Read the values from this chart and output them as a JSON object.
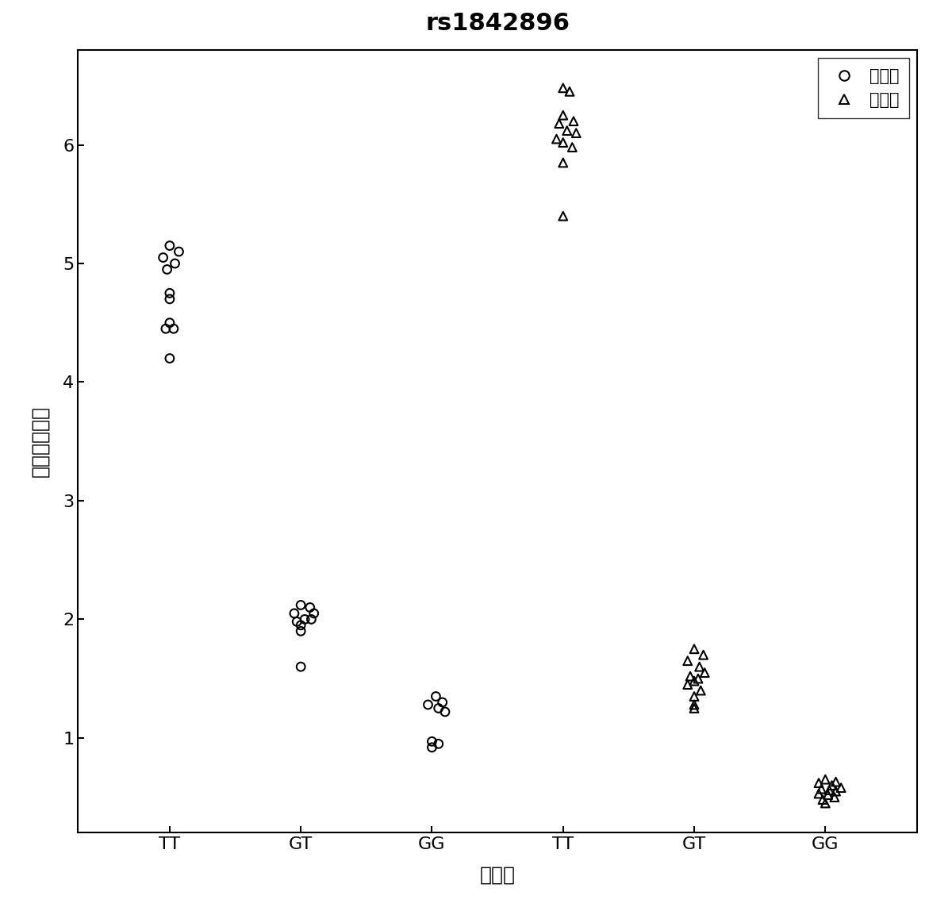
{
  "title": "rs1842896",
  "xlabel": "基因型",
  "ylabel": "探针信号比値",
  "legend_labels": [
    "优化前",
    "优化后"
  ],
  "xtick_labels": [
    "TT",
    "GT",
    "GG",
    "TT",
    "GT",
    "GG"
  ],
  "xtick_positions": [
    1,
    2,
    3,
    4,
    5,
    6
  ],
  "yticks": [
    1,
    2,
    3,
    4,
    5,
    6
  ],
  "ylim": [
    0.2,
    6.8
  ],
  "xlim": [
    0.3,
    6.7
  ],
  "circle_TT_y": [
    5.15,
    5.1,
    5.05,
    5.0,
    4.95,
    4.75,
    4.7,
    4.5,
    4.45,
    4.45,
    4.2
  ],
  "circle_TT_x": [
    1.0,
    1.07,
    0.95,
    1.04,
    0.98,
    1.0,
    1.0,
    1.0,
    0.97,
    1.03,
    1.0
  ],
  "circle_GT_y": [
    2.12,
    2.1,
    2.05,
    2.05,
    2.0,
    2.0,
    1.98,
    1.95,
    1.9,
    1.6
  ],
  "circle_GT_x": [
    2.0,
    2.07,
    1.95,
    2.1,
    2.03,
    2.08,
    1.97,
    2.0,
    2.0,
    2.0
  ],
  "circle_GG_y": [
    1.35,
    1.3,
    1.28,
    1.25,
    1.22,
    0.97,
    0.95,
    0.92
  ],
  "circle_GG_x": [
    3.03,
    3.08,
    2.97,
    3.05,
    3.1,
    3.0,
    3.05,
    3.0
  ],
  "tri_TT_y": [
    6.48,
    6.45,
    6.25,
    6.2,
    6.18,
    6.12,
    6.1,
    6.05,
    6.02,
    5.98,
    5.85,
    5.4
  ],
  "tri_TT_x": [
    4.0,
    4.05,
    4.0,
    4.08,
    3.97,
    4.03,
    4.1,
    3.95,
    4.0,
    4.07,
    4.0,
    4.0
  ],
  "tri_GT_y": [
    1.75,
    1.7,
    1.65,
    1.6,
    1.55,
    1.52,
    1.5,
    1.48,
    1.45,
    1.4,
    1.35,
    1.28,
    1.25
  ],
  "tri_GT_x": [
    5.0,
    5.07,
    4.95,
    5.04,
    5.08,
    4.97,
    5.03,
    5.0,
    4.95,
    5.05,
    5.0,
    5.0,
    5.0
  ],
  "tri_GG_y": [
    0.65,
    0.63,
    0.62,
    0.6,
    0.58,
    0.57,
    0.56,
    0.55,
    0.53,
    0.52,
    0.5,
    0.48,
    0.45
  ],
  "tri_GG_x": [
    6.0,
    6.08,
    5.95,
    6.05,
    6.12,
    5.97,
    6.03,
    6.08,
    5.95,
    6.02,
    6.07,
    5.98,
    6.0
  ],
  "marker_size": 60,
  "facecolor": "none",
  "edgecolor": "black",
  "background_color": "white",
  "title_fontsize": 22,
  "label_fontsize": 18,
  "tick_fontsize": 16,
  "legend_fontsize": 15
}
